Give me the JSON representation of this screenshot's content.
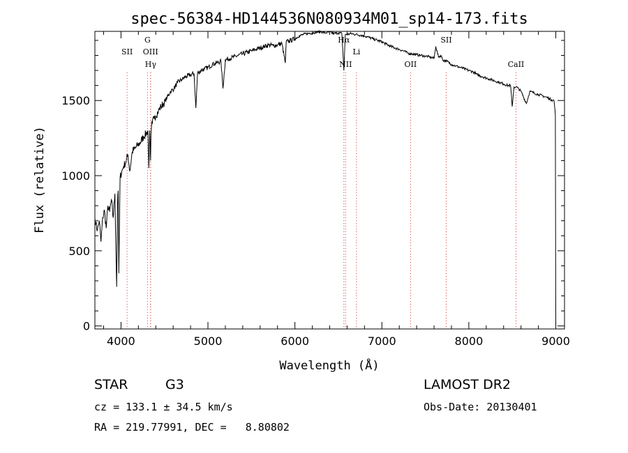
{
  "chart_data": {
    "type": "line",
    "title": "spec-56384-HD144536N080934M01_sp14-173.fits",
    "xlabel": "Wavelength (Å)",
    "ylabel": "Flux (relative)",
    "xlim": [
      3700,
      9100
    ],
    "ylim": [
      -20,
      1960
    ],
    "xticks": [
      4000,
      5000,
      6000,
      7000,
      8000,
      9000
    ],
    "yticks": [
      0,
      500,
      1000,
      1500
    ],
    "grid": false,
    "line_color": "#000000",
    "marker_color": "#dd3333",
    "series": [
      {
        "x": [
          3700,
          3710,
          3730,
          3750,
          3770,
          3790,
          3810,
          3830,
          3850,
          3870,
          3890,
          3910,
          3930,
          3950,
          3960,
          3968,
          3975,
          3990,
          4010,
          4030,
          4060,
          4080,
          4101,
          4130,
          4160,
          4190,
          4220,
          4260,
          4290,
          4310,
          4320,
          4330,
          4340,
          4345,
          4350,
          4360,
          4380,
          4400,
          4430,
          4460,
          4490,
          4530,
          4570,
          4610,
          4650,
          4700,
          4750,
          4800,
          4840,
          4861,
          4880,
          4920,
          4960,
          5000,
          5050,
          5100,
          5150,
          5172,
          5200,
          5250,
          5300,
          5350,
          5400,
          5450,
          5500,
          5550,
          5600,
          5650,
          5700,
          5750,
          5800,
          5850,
          5890,
          5900,
          5950,
          6000,
          6050,
          6100,
          6150,
          6200,
          6250,
          6300,
          6350,
          6400,
          6450,
          6500,
          6540,
          6563,
          6580,
          6600,
          6650,
          6700,
          6750,
          6800,
          6850,
          6900,
          6950,
          7000,
          7050,
          7100,
          7150,
          7200,
          7250,
          7300,
          7350,
          7400,
          7450,
          7500,
          7550,
          7600,
          7620,
          7650,
          7680,
          7700,
          7750,
          7800,
          7850,
          7900,
          7950,
          8000,
          8050,
          8100,
          8150,
          8200,
          8250,
          8300,
          8350,
          8400,
          8450,
          8480,
          8498,
          8520,
          8542,
          8570,
          8600,
          8662,
          8700,
          8750,
          8800,
          8850,
          8900,
          8950,
          8980,
          8995,
          9000
        ],
        "values": [
          720,
          680,
          640,
          700,
          560,
          720,
          770,
          650,
          800,
          760,
          840,
          720,
          880,
          260,
          800,
          900,
          350,
          990,
          1030,
          1060,
          1100,
          1140,
          1030,
          1160,
          1180,
          1200,
          1220,
          1260,
          1280,
          1300,
          1050,
          1300,
          1100,
          1280,
          1320,
          1350,
          1380,
          1400,
          1430,
          1460,
          1480,
          1520,
          1560,
          1580,
          1620,
          1640,
          1660,
          1670,
          1680,
          1450,
          1680,
          1700,
          1710,
          1720,
          1740,
          1750,
          1760,
          1580,
          1770,
          1780,
          1790,
          1800,
          1810,
          1820,
          1830,
          1840,
          1850,
          1860,
          1870,
          1865,
          1870,
          1880,
          1750,
          1890,
          1900,
          1910,
          1930,
          1940,
          1945,
          1950,
          1955,
          1958,
          1950,
          1955,
          1945,
          1950,
          1945,
          1700,
          1940,
          1940,
          1945,
          1940,
          1935,
          1930,
          1920,
          1910,
          1900,
          1890,
          1875,
          1860,
          1850,
          1840,
          1830,
          1815,
          1810,
          1805,
          1800,
          1795,
          1790,
          1780,
          1860,
          1790,
          1800,
          1770,
          1760,
          1740,
          1730,
          1720,
          1710,
          1700,
          1690,
          1670,
          1660,
          1650,
          1640,
          1630,
          1620,
          1610,
          1600,
          1600,
          1460,
          1590,
          1590,
          1580,
          1560,
          1480,
          1560,
          1550,
          1540,
          1530,
          1520,
          1505,
          1500,
          1400,
          0
        ]
      }
    ],
    "line_markers": [
      {
        "label": "SII",
        "x": 4070,
        "row": 2
      },
      {
        "label": "G",
        "x": 4305,
        "row": 1
      },
      {
        "label": "OIII",
        "x": 4340,
        "row": 2
      },
      {
        "label": "Hγ",
        "x": 4341,
        "row": 3
      },
      {
        "label": "Hα",
        "x": 6563,
        "row": 1
      },
      {
        "label": "NII",
        "x": 6583,
        "row": 3
      },
      {
        "label": "Li",
        "x": 6708,
        "row": 2
      },
      {
        "label": "OII",
        "x": 7330,
        "row": 3
      },
      {
        "label": "SII",
        "x": 7740,
        "row": 1
      },
      {
        "label": "CaII",
        "x": 8542,
        "row": 3
      }
    ]
  },
  "info": {
    "object_class": "STAR",
    "subclass": "G3",
    "survey": "LAMOST DR2",
    "cz_text": "cz = 133.1 ± 34.5 km/s",
    "obs_date_text": "Obs-Date: 20130401",
    "coords_text": "RA = 219.77991, DEC =   8.80802"
  }
}
